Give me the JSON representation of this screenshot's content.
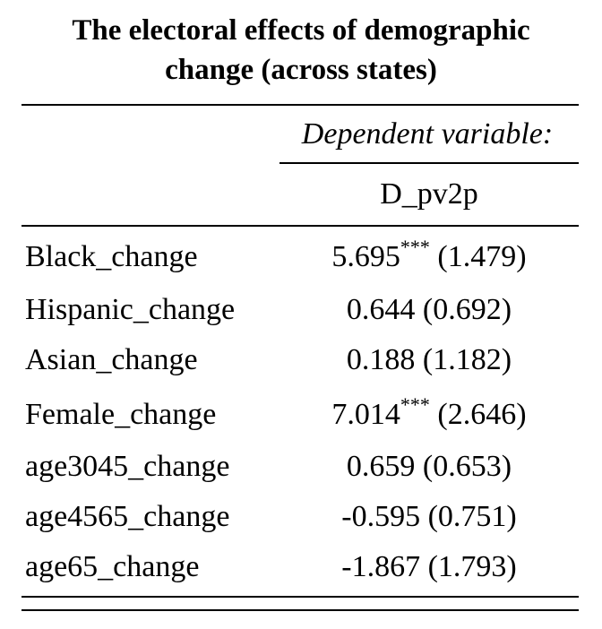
{
  "title": {
    "line1": "The electoral effects of demographic",
    "line2": "change (across states)"
  },
  "header": {
    "dependent_variable_label": "Dependent variable:",
    "dependent_variable_name": "D_pv2p"
  },
  "rows": [
    {
      "label": "Black_change",
      "coef": "5.695",
      "stars": "***",
      "se": "(1.479)"
    },
    {
      "label": "Hispanic_change",
      "coef": "0.644",
      "stars": "",
      "se": "(0.692)"
    },
    {
      "label": "Asian_change",
      "coef": "0.188",
      "stars": "",
      "se": "(1.182)"
    },
    {
      "label": "Female_change",
      "coef": "7.014",
      "stars": "***",
      "se": "(2.646)"
    },
    {
      "label": "age3045_change",
      "coef": "0.659",
      "stars": "",
      "se": "(0.653)"
    },
    {
      "label": "age4565_change",
      "coef": "-0.595",
      "stars": "",
      "se": "(0.751)"
    },
    {
      "label": "age65_change",
      "coef": "-1.867",
      "stars": "",
      "se": "(1.793)"
    }
  ]
}
